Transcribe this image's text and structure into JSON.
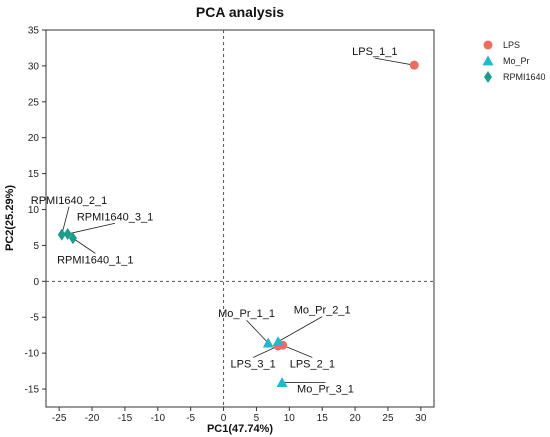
{
  "chart_data": {
    "type": "scatter",
    "title": "PCA analysis",
    "xlabel": "PC1(47.74%)",
    "ylabel": "PC2(25.29%)",
    "xlim": [
      -27,
      32
    ],
    "ylim": [
      -17.5,
      35
    ],
    "xticks": [
      -25,
      -20,
      -15,
      -10,
      -5,
      0,
      5,
      10,
      15,
      20,
      25,
      30
    ],
    "yticks": [
      -15,
      -10,
      -5,
      0,
      5,
      10,
      15,
      20,
      25,
      30,
      35
    ],
    "reference_lines": {
      "x": 0,
      "y": 0,
      "style": "dashed"
    },
    "grid": false,
    "legend_position": "top-right",
    "series": [
      {
        "name": "LPS",
        "marker": "circle",
        "color": "#f06b5b",
        "points": [
          {
            "x": 29.0,
            "y": 30.1,
            "label": "LPS_1_1"
          },
          {
            "x": 9.0,
            "y": -8.9,
            "label": "LPS_2_1"
          },
          {
            "x": 8.3,
            "y": -9.0,
            "label": "LPS_3_1"
          }
        ]
      },
      {
        "name": "Mo_Pr",
        "marker": "triangle",
        "color": "#1fb8d0",
        "points": [
          {
            "x": 6.8,
            "y": -8.6,
            "label": "Mo_Pr_1_1"
          },
          {
            "x": 8.3,
            "y": -8.4,
            "label": "Mo_Pr_2_1"
          },
          {
            "x": 8.9,
            "y": -14.1,
            "label": "Mo_Pr_3_1"
          }
        ]
      },
      {
        "name": "RPMI1640",
        "marker": "diamond",
        "color": "#1a9e8c",
        "points": [
          {
            "x": -22.9,
            "y": 6.0,
            "label": "RPMI1640_1_1"
          },
          {
            "x": -24.6,
            "y": 6.5,
            "label": "RPMI1640_2_1"
          },
          {
            "x": -23.7,
            "y": 6.6,
            "label": "RPMI1640_3_1"
          }
        ]
      }
    ],
    "annotations": [
      {
        "text": "LPS_1_1",
        "x": 23.0,
        "y": 31.5
      },
      {
        "text": "LPS_2_1",
        "x": 13.5,
        "y": -12.0
      },
      {
        "text": "LPS_3_1",
        "x": 4.5,
        "y": -12.0
      },
      {
        "text": "Mo_Pr_1_1",
        "x": 3.5,
        "y": -5.0
      },
      {
        "text": "Mo_Pr_2_1",
        "x": 15.0,
        "y": -4.5
      },
      {
        "text": "Mo_Pr_3_1",
        "x": 15.5,
        "y": -15.5
      },
      {
        "text": "RPMI1640_1_1",
        "x": -19.5,
        "y": 2.5
      },
      {
        "text": "RPMI1640_2_1",
        "x": -23.5,
        "y": 10.8
      },
      {
        "text": "RPMI1640_3_1",
        "x": -16.5,
        "y": 8.5
      }
    ]
  }
}
